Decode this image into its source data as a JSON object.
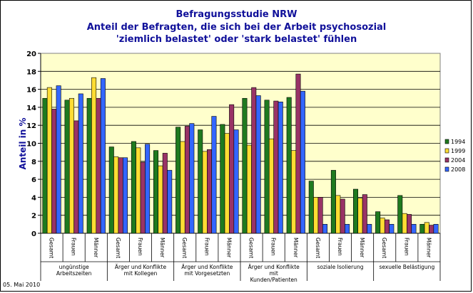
{
  "chart_data": {
    "type": "bar",
    "title": [
      "Befragungsstudie NRW",
      "Anteil der Befragten, die sich bei der Arbeit psychosozial",
      "'ziemlich belastet' oder 'stark belastet' fühlen"
    ],
    "ylabel": "Anteil in %",
    "ylim": [
      0,
      20
    ],
    "yticks": [
      "0",
      "2",
      "4",
      "6",
      "8",
      "10",
      "12",
      "14",
      "16",
      "18",
      "20"
    ],
    "grid": true,
    "legend_position": "right",
    "categories": [
      "Gesamt",
      "Frauen",
      "Männer",
      "Gesamt",
      "Frauen",
      "Männer",
      "Gesamt",
      "Frauen",
      "Männer",
      "Gesamt",
      "Frauen",
      "Männer",
      "Gesamt",
      "Frauen",
      "Männer",
      "Gesamt",
      "Frauen",
      "Männer"
    ],
    "groups": [
      {
        "label": "ungünstige Arbeitszeiten"
      },
      {
        "label": "Ärger und Konflikte mit Kollegen"
      },
      {
        "label": "Ärger und Konflikte mit Vorgesetzten"
      },
      {
        "label": "Ärger und Konflikte mit Kunden/Patienten"
      },
      {
        "label": "soziale Isolierung"
      },
      {
        "label": "sexuelle Belästigung"
      }
    ],
    "series": [
      {
        "name": "1994",
        "color": "#1f7a1f",
        "values": [
          15.0,
          14.8,
          15.0,
          9.6,
          10.2,
          9.2,
          11.8,
          11.5,
          12.1,
          15.0,
          14.8,
          15.1,
          5.8,
          7.0,
          4.9,
          2.4,
          4.2,
          1.0
        ]
      },
      {
        "name": "1999",
        "color": "#ffdd33",
        "values": [
          16.2,
          15.0,
          17.3,
          8.5,
          9.5,
          7.5,
          10.2,
          9.1,
          11.1,
          9.8,
          10.5,
          9.2,
          4.0,
          4.2,
          3.9,
          1.7,
          2.2,
          1.2
        ]
      },
      {
        "name": "2004",
        "color": "#993366",
        "values": [
          13.8,
          12.5,
          15.0,
          8.4,
          7.9,
          8.9,
          11.9,
          9.3,
          14.3,
          16.2,
          14.7,
          17.7,
          4.0,
          3.8,
          4.3,
          1.5,
          2.1,
          0.9
        ]
      },
      {
        "name": "2008",
        "color": "#3366ff",
        "values": [
          16.4,
          15.5,
          17.2,
          8.4,
          9.9,
          7.0,
          12.2,
          13.0,
          11.5,
          15.3,
          14.6,
          15.8,
          1.0,
          1.0,
          1.0,
          1.0,
          1.0,
          1.0
        ]
      }
    ]
  },
  "footer": {
    "date": "05. Mai 2010"
  }
}
